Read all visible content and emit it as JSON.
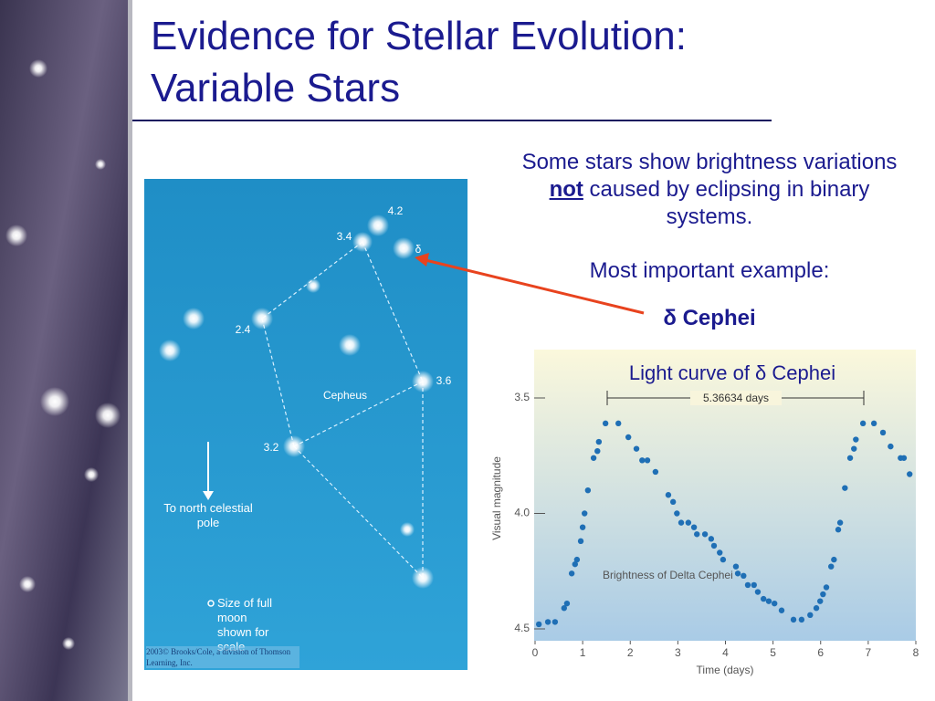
{
  "title": {
    "lines": [
      "Evidence for Stellar Evolution:",
      "Variable Stars"
    ]
  },
  "body": {
    "intro": {
      "before": "Some stars show brightness variations ",
      "emphasis": "not",
      "after": " caused by eclipsing in binary systems."
    },
    "example_label": "Most important example:",
    "example": "δ Cephei"
  },
  "star_map": {
    "labels": [
      "4.2",
      "3.4",
      "δ",
      "2.4",
      "3.6",
      "3.2"
    ],
    "constellation": "Cepheus",
    "north_label": "To north celestial pole",
    "moon_note": "Size of full moon shown for scale",
    "credit": "2003© Brooks/Cole, a division of Thomson Learning, Inc."
  },
  "light_curve": {
    "type": "scatter",
    "title": "Light curve of δ Cephei",
    "period_label": "5.36634 days",
    "annotation": "Brightness of Delta Cephei",
    "xlabel": "Time (days)",
    "ylabel": "Visual magnitude",
    "color": "#1f6fb5",
    "xlim": [
      0,
      8
    ],
    "ylim": [
      4.5,
      3.5
    ],
    "xticks": [
      0,
      1,
      2,
      3,
      4,
      5,
      6,
      7,
      8
    ],
    "yticks": [
      3.5,
      {
        "value": 4,
        "label": "4.0"
      },
      4.5
    ],
    "x": [
      0.08,
      0.27,
      0.42,
      0.61,
      0.67,
      0.77,
      0.84,
      0.88,
      0.96,
      1.0,
      1.04,
      1.11,
      1.23,
      1.31,
      1.34,
      1.48,
      1.75,
      1.96,
      2.13,
      2.25,
      2.36,
      2.53,
      2.8,
      2.9,
      2.98,
      3.07,
      3.22,
      3.34,
      3.4,
      3.57,
      3.7,
      3.76,
      3.88,
      3.95,
      4.22,
      4.26,
      4.38,
      4.47,
      4.6,
      4.68,
      4.8,
      4.91,
      5.03,
      5.18,
      5.43,
      5.6,
      5.78,
      5.91,
      5.99,
      6.05,
      6.12,
      6.22,
      6.28,
      6.37,
      6.41,
      6.51,
      6.62,
      6.7,
      6.74,
      6.89,
      7.12,
      7.31,
      7.47,
      7.68,
      7.75,
      7.87
    ],
    "values": [
      4.48,
      4.47,
      4.47,
      4.41,
      4.39,
      4.26,
      4.22,
      4.2,
      4.12,
      4.06,
      4.0,
      3.9,
      3.76,
      3.73,
      3.69,
      3.61,
      3.61,
      3.67,
      3.72,
      3.77,
      3.77,
      3.82,
      3.92,
      3.95,
      4.0,
      4.04,
      4.04,
      4.06,
      4.09,
      4.09,
      4.11,
      4.14,
      4.17,
      4.2,
      4.23,
      4.26,
      4.27,
      4.31,
      4.31,
      4.34,
      4.37,
      4.38,
      4.39,
      4.42,
      4.46,
      4.46,
      4.44,
      4.41,
      4.38,
      4.35,
      4.32,
      4.23,
      4.2,
      4.07,
      4.04,
      3.89,
      3.76,
      3.72,
      3.68,
      3.61,
      3.61,
      3.65,
      3.71,
      3.76,
      3.76,
      3.83
    ]
  }
}
